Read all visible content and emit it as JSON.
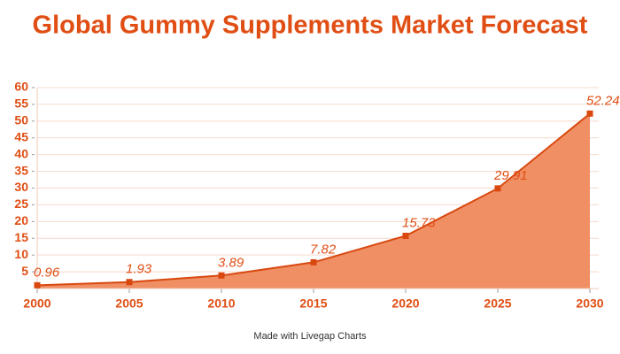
{
  "chart_data": {
    "type": "area",
    "title": "Global Gummy Supplements Market Forecast",
    "x": [
      2000,
      2005,
      2010,
      2015,
      2020,
      2025,
      2030
    ],
    "values": [
      0.96,
      1.93,
      3.89,
      7.82,
      15.73,
      29.91,
      52.24
    ],
    "color": "#d9480f",
    "fill": "#ef8f63",
    "xlim": [
      2000,
      2030
    ],
    "xticks": [
      2000,
      2005,
      2010,
      2015,
      2020,
      2025,
      2030
    ],
    "ylim": [
      0,
      60
    ],
    "yticks": [
      5,
      10,
      15,
      20,
      25,
      30,
      35,
      40,
      45,
      50,
      55,
      60
    ],
    "grid": true
  },
  "footer": "Made with Livegap Charts"
}
